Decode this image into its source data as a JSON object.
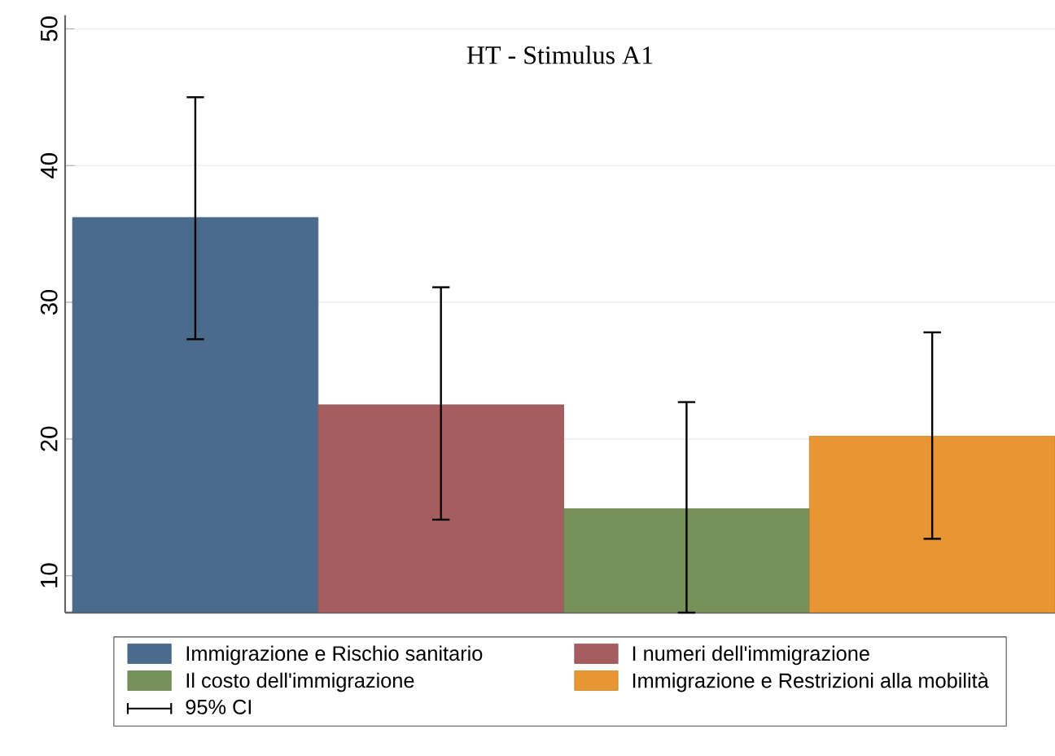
{
  "chart_data": {
    "type": "bar",
    "title": "HT - Stimulus A1",
    "categories": [
      null,
      null,
      null,
      null
    ],
    "series": [
      {
        "name": "Immigrazione e Rischio sanitario",
        "color": "#4a6b8c",
        "values": [
          36.2,
          null,
          null,
          null
        ],
        "errors": [
          [
            27.3,
            45.0
          ],
          null,
          null,
          null
        ]
      },
      {
        "name": "I numeri dell'immigrazione",
        "color": "#a55d60",
        "values": [
          null,
          22.5,
          null,
          null
        ],
        "errors": [
          null,
          [
            14.1,
            31.1
          ],
          null,
          null
        ]
      },
      {
        "name": "Il costo dell'immigrazione",
        "color": "#77915a",
        "values": [
          null,
          null,
          14.9,
          null
        ],
        "errors": [
          null,
          null,
          [
            7.3,
            22.7
          ],
          null
        ]
      },
      {
        "name": "Immigrazione e Restrizioni alla mobilità",
        "color": "#e79633",
        "values": [
          null,
          null,
          null,
          20.2
        ],
        "errors": [
          null,
          null,
          null,
          [
            12.7,
            27.8
          ]
        ]
      }
    ],
    "ylim": [
      7.3,
      51
    ],
    "yticks": [
      10,
      20,
      30,
      40,
      50
    ],
    "grid": "y",
    "legend": "bottom",
    "annotations": [
      "95% CI"
    ]
  }
}
